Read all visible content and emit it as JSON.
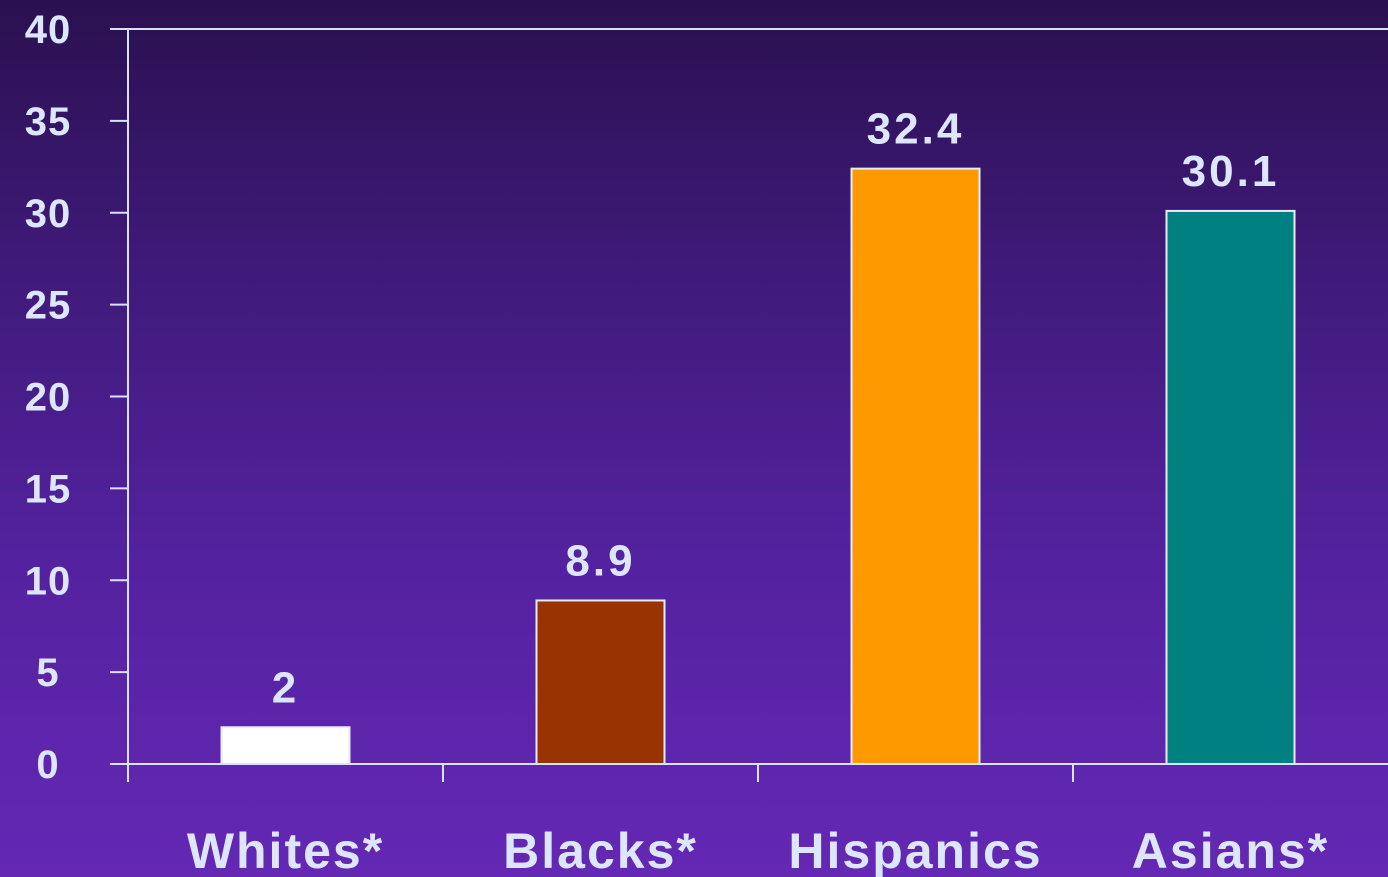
{
  "chart_data": {
    "type": "bar",
    "categories": [
      "Whites*",
      "Blacks*",
      "Hispanics",
      "Asians*"
    ],
    "values": [
      2,
      8.9,
      32.4,
      30.1
    ],
    "data_labels": [
      "2",
      "8.9",
      "32.4",
      "30.1"
    ],
    "bar_colors": [
      "#ffffff",
      "#993300",
      "#ff9900",
      "#008080"
    ],
    "yticks": [
      "0",
      "5",
      "10",
      "15",
      "20",
      "25",
      "30",
      "35",
      "40"
    ],
    "ylim": [
      0,
      40
    ],
    "grid": false,
    "legend": "none"
  }
}
